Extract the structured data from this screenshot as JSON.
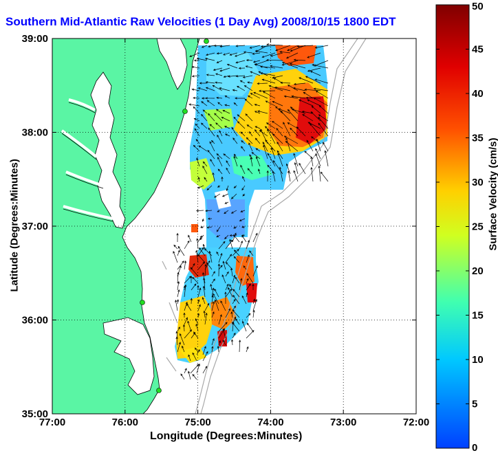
{
  "title": "Southern Mid-Atlantic Raw Velocities (1 Day Avg) 2008/10/15 1800 EDT",
  "x_axis": {
    "label": "Longitude (Degrees:Minutes)",
    "ticks": [
      "77:00",
      "76:00",
      "75:00",
      "74:00",
      "73:00",
      "72:00"
    ],
    "range": [
      -77,
      -72
    ]
  },
  "y_axis": {
    "label": "Latitude (Degrees:Minutes)",
    "ticks": [
      "35:00",
      "36:00",
      "37:00",
      "38:00",
      "39:00"
    ],
    "range": [
      35,
      39
    ]
  },
  "colorbar": {
    "label": "Surface Velocity (cm/s)",
    "ticks": [
      "0",
      "5",
      "10",
      "15",
      "20",
      "25",
      "30",
      "35",
      "40",
      "45",
      "50"
    ],
    "range": [
      0,
      50
    ],
    "colors": [
      "#0040ff",
      "#00c8ff",
      "#40ffb0",
      "#d0ff20",
      "#ffd000",
      "#ff5000",
      "#e00000",
      "#800000"
    ]
  },
  "colors": {
    "land": "#5af5a4",
    "title": "#0000ff",
    "grid": "#000000",
    "bathymetry": "#a8a8a8",
    "stations": "#22dd22"
  },
  "grid": "dotted"
}
